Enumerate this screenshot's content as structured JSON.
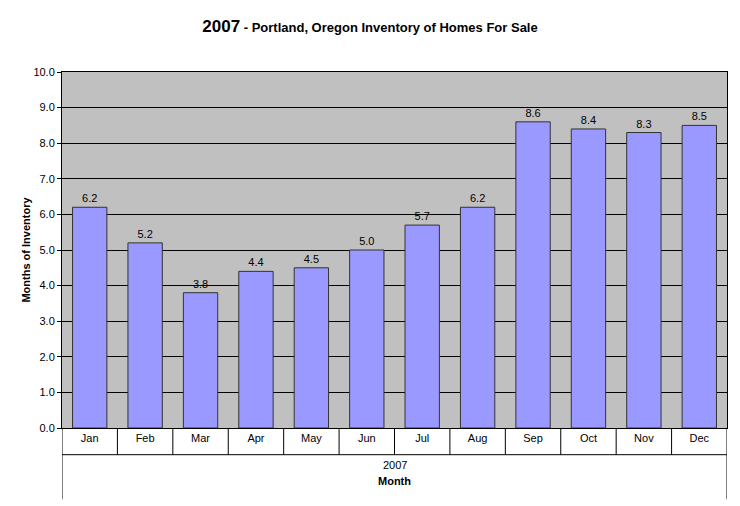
{
  "chart_data": {
    "type": "bar",
    "title": "2007 - Portland, Oregon Inventory of Homes For Sale",
    "x_label": "Month",
    "x_group_label": "2007",
    "y_label": "Months of Inventory",
    "categories": [
      "Jan",
      "Feb",
      "Mar",
      "Apr",
      "May",
      "Jun",
      "Jul",
      "Aug",
      "Sep",
      "Oct",
      "Nov",
      "Dec"
    ],
    "values": [
      6.2,
      5.2,
      3.8,
      4.4,
      4.5,
      5.0,
      5.7,
      6.2,
      8.6,
      8.4,
      8.3,
      8.5
    ],
    "value_labels": [
      "6.2",
      "5.2",
      "3.8",
      "4.4",
      "4.5",
      "5.0",
      "5.7",
      "6.2",
      "8.6",
      "8.4",
      "8.3",
      "8.5"
    ],
    "color": "#9999ff",
    "ylim": [
      0,
      10
    ],
    "yticks": [
      {
        "value": 0,
        "label": "0.0"
      },
      {
        "value": 1,
        "label": "1.0"
      },
      {
        "value": 2,
        "label": "2.0"
      },
      {
        "value": 3,
        "label": "3.0"
      },
      {
        "value": 4,
        "label": "4.0"
      },
      {
        "value": 5,
        "label": "5.0"
      },
      {
        "value": 6,
        "label": "6.0"
      },
      {
        "value": 7,
        "label": "7.0"
      },
      {
        "value": 8,
        "label": "8.0"
      },
      {
        "value": 9,
        "label": "9.0"
      },
      {
        "value": 10,
        "label": "10.0"
      }
    ],
    "grid": true,
    "data_labels": true
  }
}
